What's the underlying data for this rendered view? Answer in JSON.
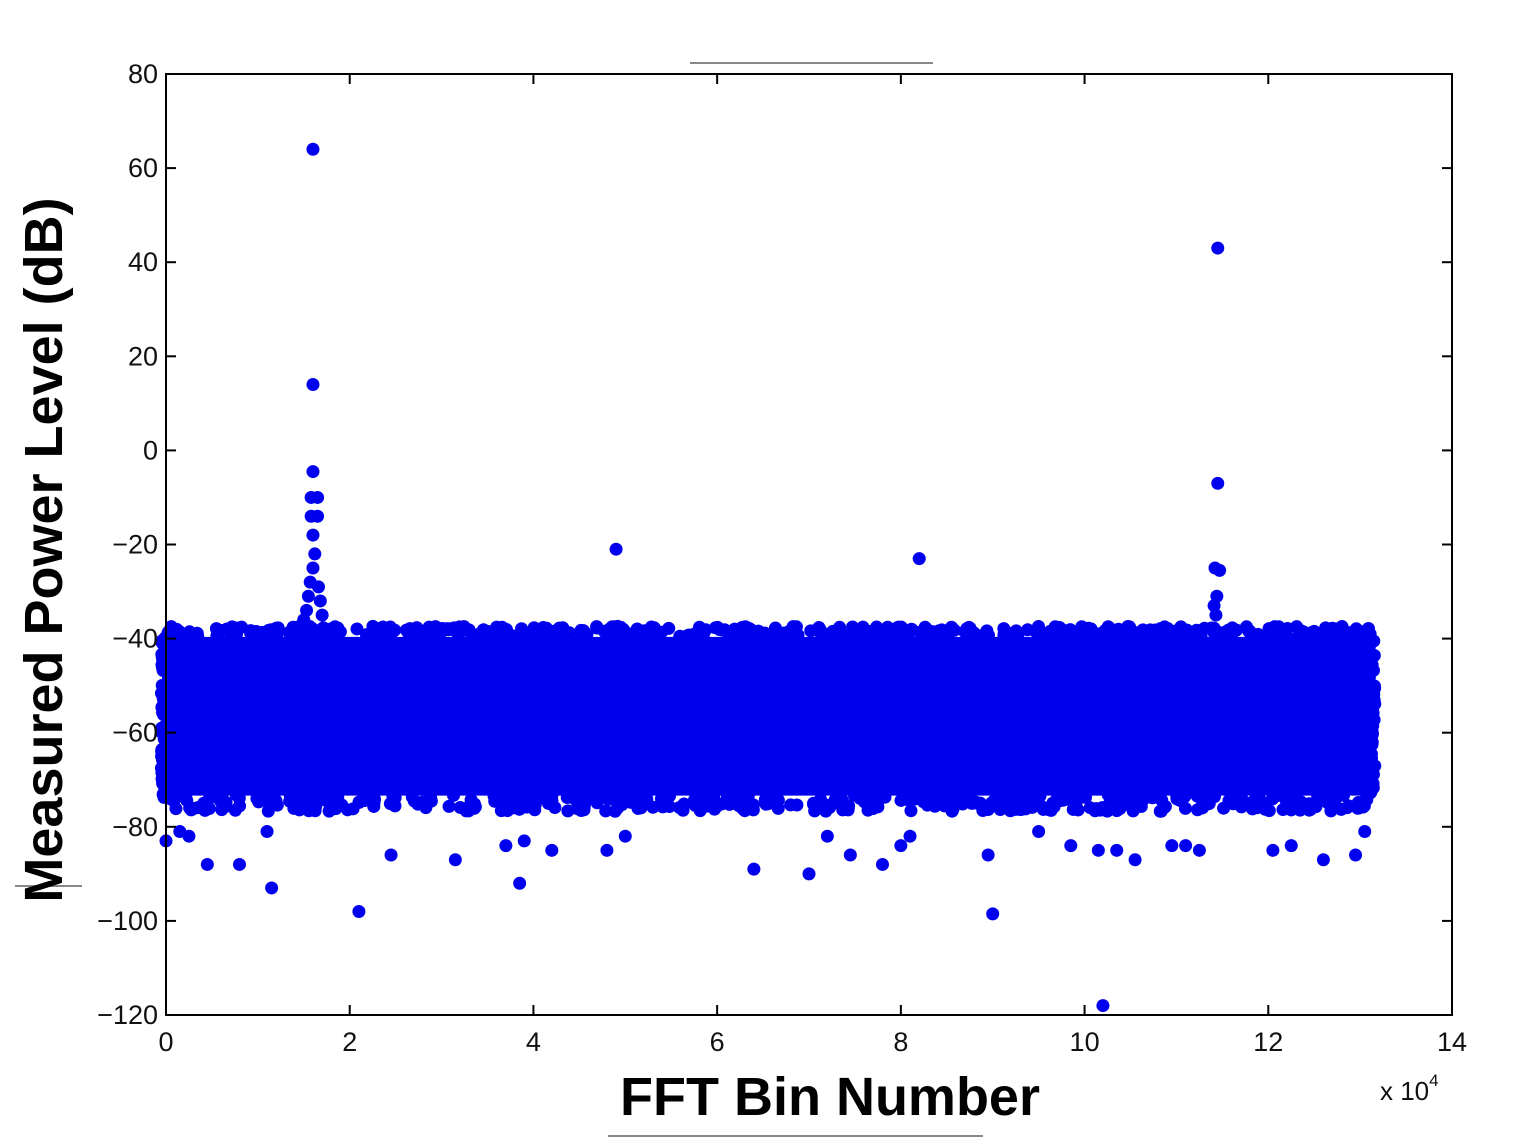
{
  "chart_data": {
    "type": "scatter",
    "title": "",
    "xlabel": "FFT Bin Number",
    "ylabel": "Measured Power Level (dB)",
    "x_multiplier_label": "x 10",
    "x_multiplier_exponent": "4",
    "xlim": [
      0,
      14
    ],
    "ylim": [
      -120,
      80
    ],
    "x_units": "FFT bin number / 10^4",
    "x_ticks": [
      "0",
      "2",
      "4",
      "6",
      "8",
      "10",
      "12",
      "14"
    ],
    "y_ticks": [
      "80",
      "60",
      "40",
      "20",
      "0",
      "−20",
      "−40",
      "−60",
      "−80",
      "−100",
      "−120"
    ],
    "grid": false,
    "legend": "none",
    "marker_color": "#0000ee",
    "noise_floor": {
      "x_range": [
        0,
        13.1
      ],
      "upper_db": -39,
      "lower_db": -74,
      "description": "dense band of points across all bins"
    },
    "series": [
      {
        "points": [
          [
            1.6,
            64
          ],
          [
            1.6,
            14
          ],
          [
            1.6,
            -4.5
          ],
          [
            1.58,
            -10
          ],
          [
            1.65,
            -10
          ],
          [
            1.58,
            -14
          ],
          [
            1.65,
            -14
          ],
          [
            1.6,
            -18
          ],
          [
            1.62,
            -22
          ],
          [
            1.6,
            -25
          ],
          [
            1.57,
            -28
          ],
          [
            1.66,
            -29
          ],
          [
            1.55,
            -31
          ],
          [
            1.68,
            -32
          ],
          [
            1.53,
            -34
          ],
          [
            1.7,
            -35
          ],
          [
            1.5,
            -36
          ],
          [
            4.9,
            -21
          ],
          [
            8.2,
            -23
          ],
          [
            11.45,
            43
          ],
          [
            11.45,
            -7
          ],
          [
            11.42,
            -25
          ],
          [
            11.47,
            -25.5
          ],
          [
            11.44,
            -31
          ],
          [
            11.41,
            -33
          ],
          [
            11.43,
            -35
          ],
          [
            0.0,
            -83
          ],
          [
            0.15,
            -81
          ],
          [
            0.25,
            -82
          ],
          [
            0.45,
            -88
          ],
          [
            0.8,
            -88
          ],
          [
            1.15,
            -93
          ],
          [
            1.1,
            -81
          ],
          [
            2.1,
            -98
          ],
          [
            2.45,
            -86
          ],
          [
            3.15,
            -87
          ],
          [
            3.7,
            -84
          ],
          [
            3.85,
            -92
          ],
          [
            3.9,
            -83
          ],
          [
            4.2,
            -85
          ],
          [
            4.8,
            -85
          ],
          [
            5.0,
            -82
          ],
          [
            6.4,
            -89
          ],
          [
            7.0,
            -90
          ],
          [
            7.2,
            -82
          ],
          [
            7.45,
            -86
          ],
          [
            7.8,
            -88
          ],
          [
            8.0,
            -84
          ],
          [
            8.1,
            -82
          ],
          [
            9.0,
            -98.5
          ],
          [
            8.95,
            -86
          ],
          [
            9.5,
            -81
          ],
          [
            9.85,
            -84
          ],
          [
            10.15,
            -85
          ],
          [
            10.2,
            -118
          ],
          [
            10.35,
            -85
          ],
          [
            10.55,
            -87
          ],
          [
            10.95,
            -84
          ],
          [
            11.1,
            -84
          ],
          [
            11.25,
            -85
          ],
          [
            12.05,
            -85
          ],
          [
            12.25,
            -84
          ],
          [
            12.6,
            -87
          ],
          [
            12.95,
            -86
          ],
          [
            13.05,
            -81
          ]
        ]
      }
    ]
  }
}
